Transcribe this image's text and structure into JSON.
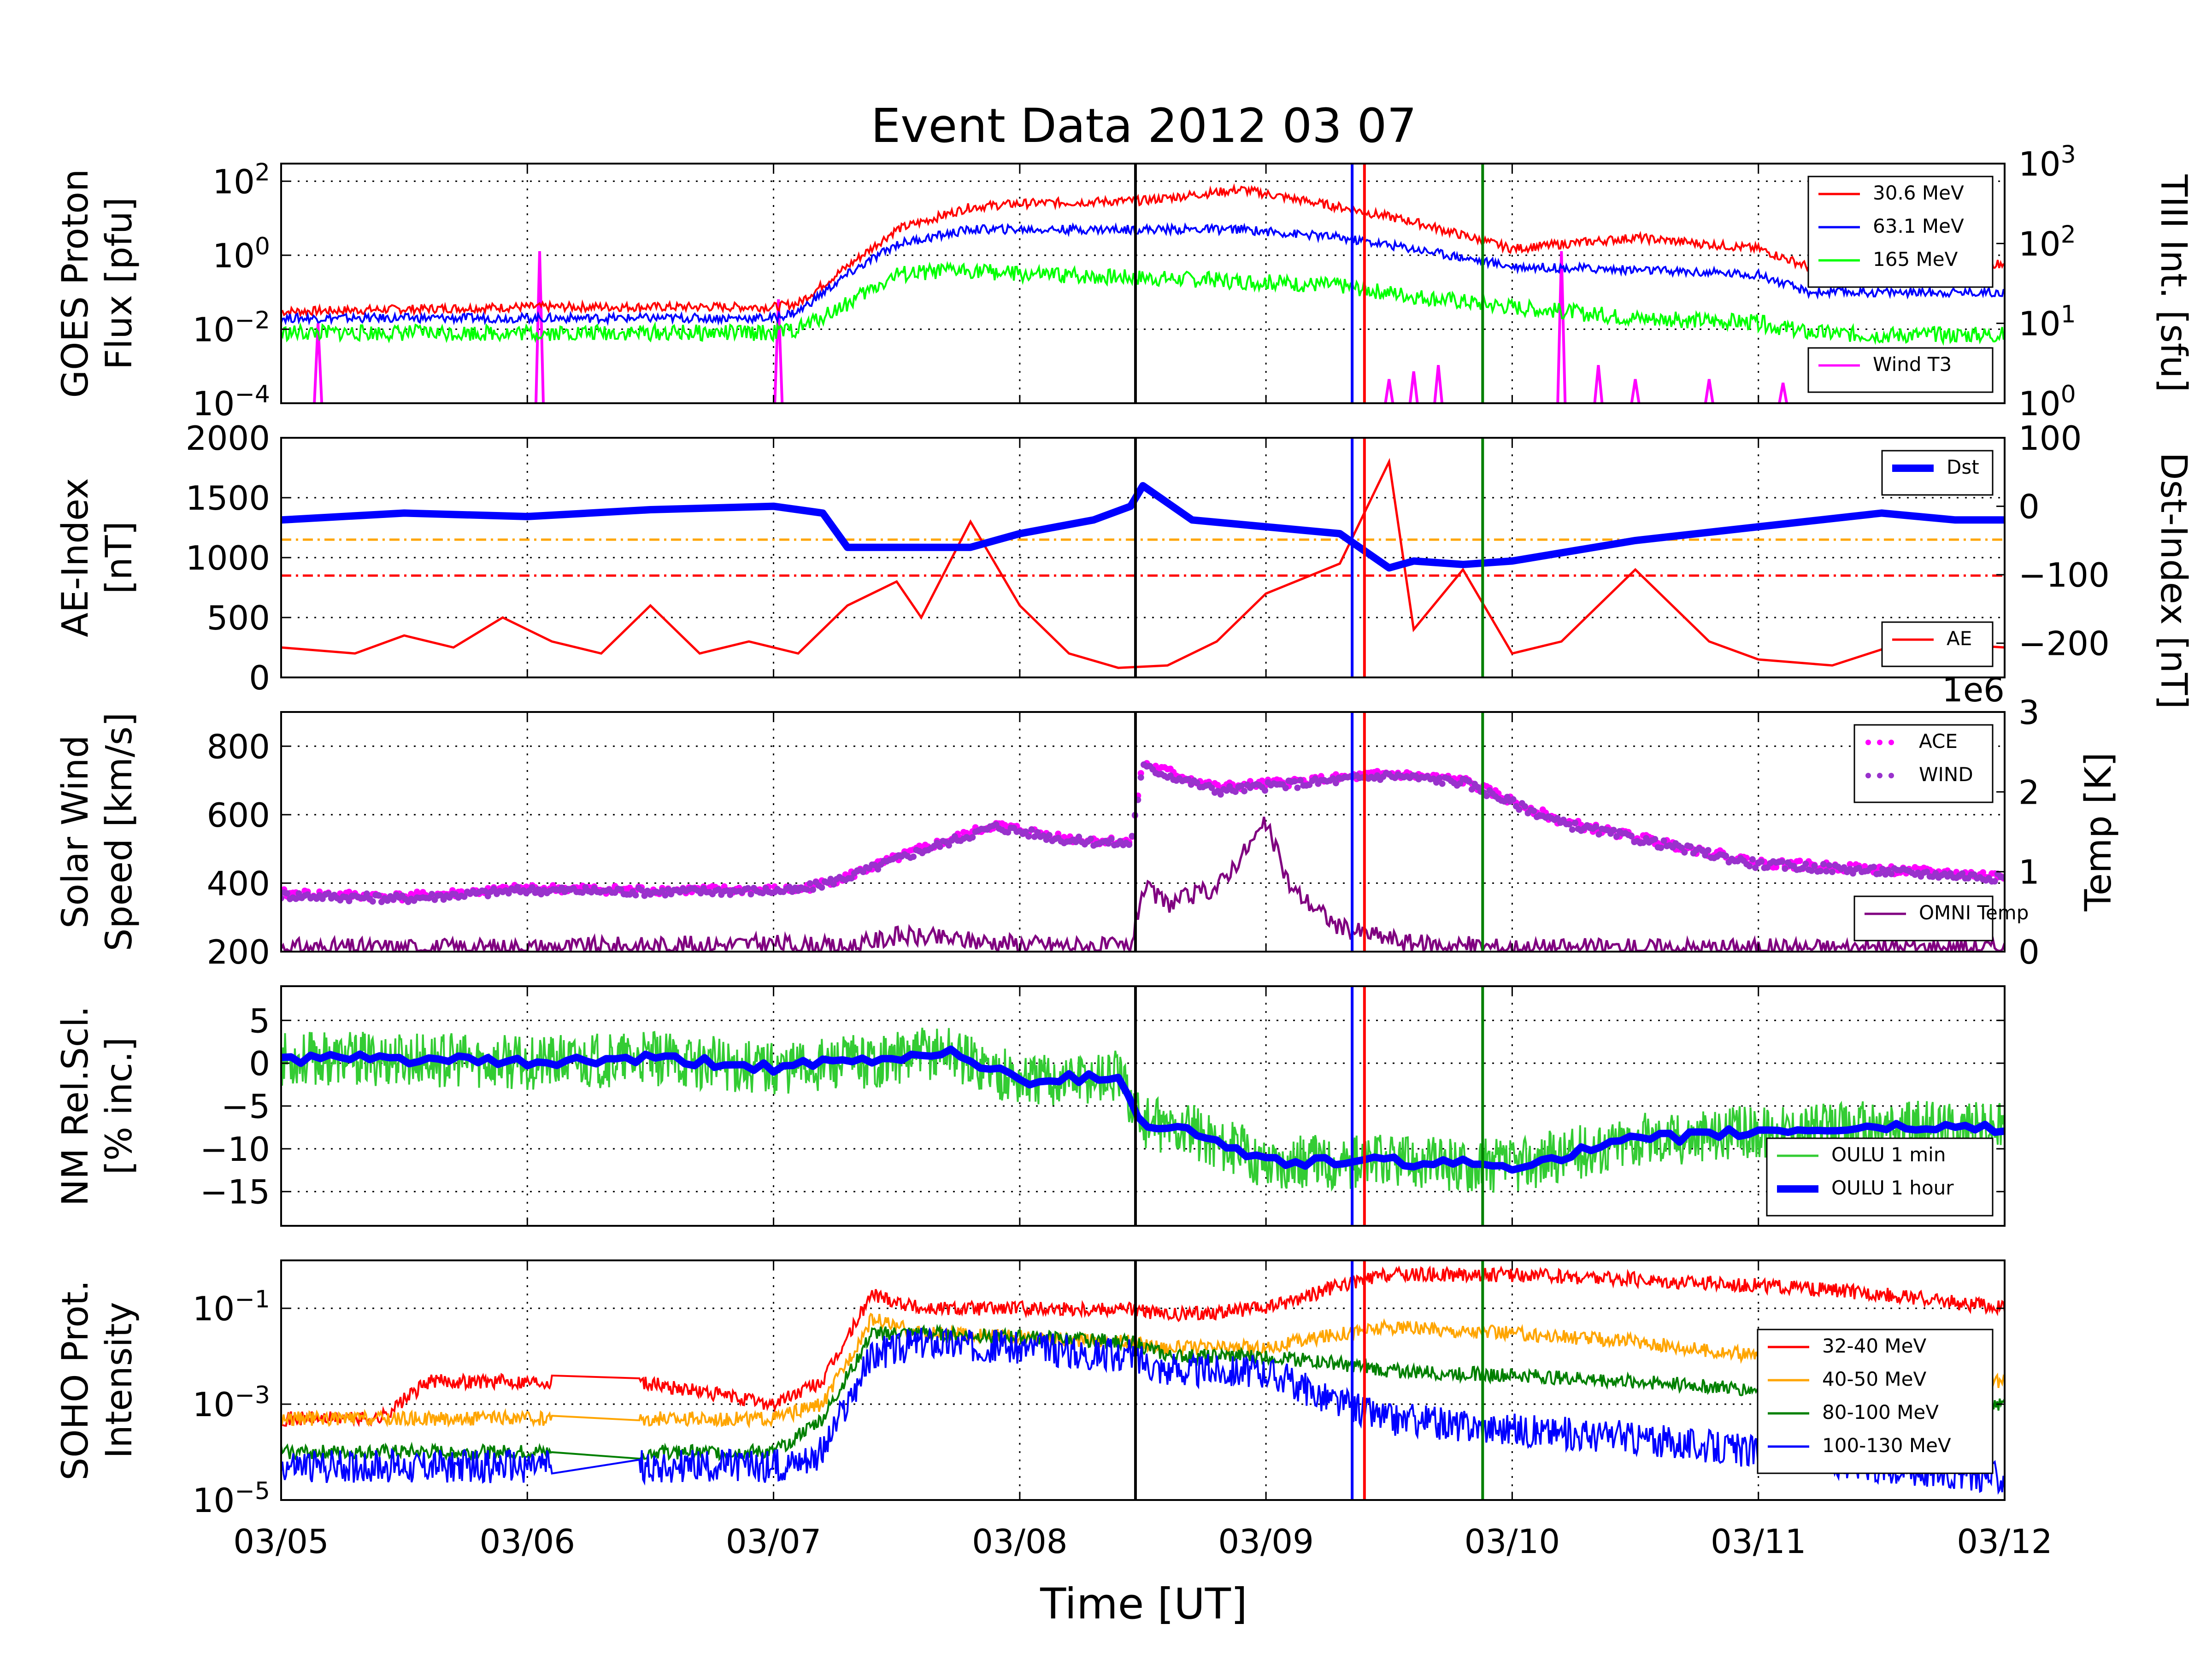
{
  "figure": {
    "title": "Event Data 2012 03 07",
    "xlabel": "Time [UT]",
    "x_ticks": [
      "03/05",
      "03/06",
      "03/07",
      "03/08",
      "03/09",
      "03/10",
      "03/11",
      "03/12"
    ]
  },
  "chart_data": [
    {
      "type": "line",
      "panel": "goes",
      "ylabel_lines": [
        "GOES Proton",
        "Flux [pfu]"
      ],
      "y_scale": "log",
      "ylim": [
        0.0001,
        300
      ],
      "y_ticks": [
        "10^-4",
        "10^-2",
        "10^0",
        "10^2"
      ],
      "y2label": "TIII Int. [sfu]",
      "y2_scale": "log",
      "y2_ticks": [
        "10^0",
        "10^1",
        "10^2",
        "10^3"
      ],
      "x_points": [
        0,
        0.5,
        1,
        1.5,
        2,
        2.1,
        2.3,
        2.5,
        2.8,
        3,
        3.5,
        3.9,
        4.3,
        4.6,
        5.0,
        5.5,
        6,
        6.2,
        6.5,
        7
      ],
      "series": [
        {
          "name": "30.6 MeV",
          "color": "#ff0000",
          "values": [
            0.03,
            0.035,
            0.04,
            0.04,
            0.04,
            0.05,
            0.5,
            5,
            20,
            25,
            30,
            60,
            20,
            8,
            1.5,
            3,
            1.5,
            0.5,
            0.5,
            0.6
          ]
        },
        {
          "name": "63.1 MeV",
          "color": "#0000ff",
          "values": [
            0.02,
            0.02,
            0.02,
            0.02,
            0.02,
            0.03,
            0.3,
            2,
            5,
            5,
            5,
            5,
            3,
            1.5,
            0.5,
            0.4,
            0.3,
            0.1,
            0.1,
            0.1
          ]
        },
        {
          "name": "165 MeV",
          "color": "#00ff00",
          "values": [
            0.008,
            0.008,
            0.008,
            0.008,
            0.008,
            0.01,
            0.05,
            0.3,
            0.4,
            0.3,
            0.25,
            0.2,
            0.15,
            0.08,
            0.04,
            0.02,
            0.015,
            0.008,
            0.007,
            0.007
          ]
        }
      ],
      "y2_series": {
        "name": "Wind T3",
        "color": "#ff00ff",
        "spikes": [
          [
            0.15,
            10
          ],
          [
            1.05,
            80
          ],
          [
            2.02,
            20
          ],
          [
            4.5,
            2
          ],
          [
            4.6,
            2.5
          ],
          [
            4.7,
            3
          ],
          [
            5.2,
            80
          ],
          [
            5.35,
            3
          ],
          [
            5.5,
            2
          ],
          [
            5.8,
            2
          ],
          [
            6.1,
            1.8
          ]
        ]
      }
    },
    {
      "type": "line",
      "panel": "ae",
      "ylabel_lines": [
        "AE-Index",
        "[nT]"
      ],
      "ylim": [
        0,
        2000
      ],
      "y_ticks": [
        "0",
        "500",
        "1000",
        "1500",
        "2000"
      ],
      "y2label": "Dst-Index [nT]",
      "y2lim": [
        -250,
        100
      ],
      "y2_ticks": [
        "−200",
        "−100",
        "0",
        "100"
      ],
      "thresholds": [
        {
          "value": 1150,
          "color": "#ffa500"
        },
        {
          "value": 850,
          "color": "#ff0000"
        }
      ],
      "series": [
        {
          "name": "AE",
          "color": "#ff0000",
          "x": [
            0,
            0.3,
            0.5,
            0.7,
            0.9,
            1.1,
            1.3,
            1.5,
            1.7,
            1.9,
            2.1,
            2.3,
            2.5,
            2.6,
            2.8,
            3.0,
            3.2,
            3.4,
            3.6,
            3.8,
            4.0,
            4.3,
            4.5,
            4.6,
            4.8,
            5.0,
            5.2,
            5.5,
            5.8,
            6.0,
            6.3,
            6.6,
            7.0
          ],
          "values": [
            250,
            200,
            350,
            250,
            500,
            300,
            200,
            600,
            200,
            300,
            200,
            600,
            800,
            500,
            1300,
            600,
            200,
            80,
            100,
            300,
            700,
            950,
            1800,
            400,
            900,
            200,
            300,
            900,
            300,
            150,
            100,
            300,
            250
          ]
        },
        {
          "name": "Dst",
          "color": "#0000ff",
          "x": [
            0,
            0.5,
            1.0,
            1.5,
            2.0,
            2.2,
            2.3,
            2.6,
            2.8,
            3.0,
            3.3,
            3.45,
            3.5,
            3.7,
            4.0,
            4.3,
            4.5,
            4.6,
            4.8,
            5.0,
            5.5,
            6.0,
            6.5,
            6.8,
            7.0
          ],
          "values": [
            -20,
            -10,
            -15,
            -5,
            0,
            -10,
            -60,
            -60,
            -60,
            -40,
            -20,
            0,
            30,
            -20,
            -30,
            -40,
            -90,
            -80,
            -85,
            -80,
            -50,
            -30,
            -10,
            -20,
            -20
          ]
        }
      ]
    },
    {
      "type": "scatter",
      "panel": "solarwind",
      "ylabel_lines": [
        "Solar Wind",
        "Speed [km/s]"
      ],
      "ylim": [
        200,
        900
      ],
      "y_ticks": [
        "200",
        "400",
        "600",
        "800"
      ],
      "y2label": "Temp [K]",
      "y2_offset_text": "1e6",
      "y2lim": [
        0,
        3
      ],
      "y2_ticks": [
        "0",
        "1",
        "2",
        "3"
      ],
      "series": [
        {
          "name": "ACE",
          "color": "#ff00ff",
          "x": [
            0,
            0.5,
            1.0,
            1.5,
            2.0,
            2.1,
            2.3,
            2.6,
            2.9,
            3.2,
            3.45,
            3.5,
            3.8,
            4.2,
            4.5,
            4.8,
            5.2,
            5.6,
            6.0,
            6.5,
            7.0
          ],
          "values": [
            370,
            360,
            385,
            380,
            380,
            380,
            420,
            500,
            570,
            530,
            520,
            750,
            680,
            700,
            720,
            700,
            580,
            520,
            460,
            440,
            420
          ]
        },
        {
          "name": "WIND",
          "color": "#9932cc",
          "x": [
            0,
            0.5,
            1.0,
            1.5,
            2.0,
            2.1,
            2.3,
            2.6,
            2.9,
            3.2,
            3.45,
            3.5,
            3.8,
            4.2,
            4.5,
            4.8,
            5.2,
            5.6,
            6.0,
            6.5,
            7.0
          ],
          "values": [
            365,
            355,
            380,
            375,
            378,
            378,
            418,
            495,
            565,
            525,
            515,
            740,
            670,
            695,
            715,
            695,
            575,
            515,
            455,
            435,
            415
          ]
        },
        {
          "name": "OMNI Temp",
          "color": "#800080",
          "x": [
            0,
            1.0,
            2.0,
            2.3,
            2.5,
            3.0,
            3.45,
            3.5,
            3.6,
            3.8,
            4.0,
            4.1,
            4.3,
            4.6,
            5.0,
            6.0,
            7.0
          ],
          "values": [
            0.05,
            0.05,
            0.1,
            0.05,
            0.2,
            0.1,
            0.05,
            0.8,
            0.6,
            0.8,
            1.6,
            0.8,
            0.3,
            0.1,
            0.05,
            0.05,
            0.05
          ]
        }
      ]
    },
    {
      "type": "line",
      "panel": "nm",
      "ylabel_lines": [
        "NM Rel.Scl.",
        "[% inc.]"
      ],
      "ylim": [
        -19,
        9
      ],
      "y_ticks": [
        "−15",
        "−10",
        "−5",
        "0",
        "5"
      ],
      "series": [
        {
          "name": "OULU 1 min",
          "color": "#33cc33",
          "x": [
            0,
            0.5,
            1.0,
            1.5,
            2.0,
            2.5,
            2.7,
            3.0,
            3.4,
            3.5,
            3.7,
            4.0,
            4.5,
            5.0,
            5.5,
            6.0,
            6.5,
            7.0
          ],
          "values": [
            0.5,
            0.5,
            0,
            0.5,
            -0.5,
            0.5,
            1.5,
            -2,
            -1.5,
            -7,
            -8,
            -11.5,
            -11.5,
            -12,
            -9,
            -8,
            -7.5,
            -7.5
          ]
        },
        {
          "name": "OULU 1 hour",
          "color": "#0000ff",
          "x": [
            0,
            0.5,
            1.0,
            1.5,
            2.0,
            2.5,
            2.7,
            3.0,
            3.4,
            3.5,
            3.7,
            4.0,
            4.5,
            5.0,
            5.5,
            6.0,
            6.5,
            7.0
          ],
          "values": [
            0.5,
            0.5,
            0,
            0.5,
            -0.5,
            0.5,
            1.5,
            -2,
            -1.5,
            -7,
            -8,
            -11.5,
            -11.5,
            -12,
            -9,
            -8,
            -7.5,
            -7.5
          ]
        }
      ]
    },
    {
      "type": "line",
      "panel": "soho",
      "ylabel_lines": [
        "SOHO Prot.",
        "Intensity"
      ],
      "y_scale": "log",
      "ylim": [
        1e-05,
        1
      ],
      "y_ticks": [
        "10^-5",
        "10^-3",
        "10^-1"
      ],
      "gap": [
        1.1,
        1.45
      ],
      "x": [
        0,
        0.4,
        0.6,
        1.1,
        1.45,
        2.0,
        2.2,
        2.4,
        2.6,
        3.0,
        3.45,
        3.6,
        4.0,
        4.3,
        4.5,
        5.0,
        5.5,
        6.0,
        6.5,
        7.0
      ],
      "series": [
        {
          "name": "32-40 MeV",
          "color": "#ff0000",
          "values": [
            0.0005,
            0.0005,
            0.003,
            0.003,
            0.003,
            0.001,
            0.003,
            0.2,
            0.1,
            0.1,
            0.1,
            0.07,
            0.1,
            0.3,
            0.5,
            0.5,
            0.4,
            0.3,
            0.2,
            0.1
          ]
        },
        {
          "name": "40-50 MeV",
          "color": "#ffa500",
          "values": [
            0.0005,
            0.0005,
            0.0005,
            0.0005,
            0.0005,
            0.0005,
            0.001,
            0.06,
            0.03,
            0.025,
            0.02,
            0.015,
            0.015,
            0.03,
            0.04,
            0.03,
            0.02,
            0.01,
            0.005,
            0.003
          ]
        },
        {
          "name": "80-100 MeV",
          "color": "#008000",
          "values": [
            0.0001,
            0.0001,
            0.0001,
            0.0001,
            0.0001,
            0.0001,
            0.0005,
            0.03,
            0.03,
            0.025,
            0.02,
            0.01,
            0.01,
            0.007,
            0.005,
            0.004,
            0.003,
            0.002,
            0.0015,
            0.001
          ]
        },
        {
          "name": "100-130 MeV",
          "color": "#0000ff",
          "values": [
            5e-05,
            5e-05,
            5e-05,
            5e-05,
            5e-05,
            5e-05,
            0.0001,
            0.01,
            0.02,
            0.015,
            0.01,
            0.005,
            0.005,
            0.001,
            0.0005,
            0.0003,
            0.0002,
            0.0001,
            5e-05,
            3e-05
          ]
        }
      ]
    }
  ],
  "event_markers": [
    {
      "x": 3.47,
      "color": "#000000"
    },
    {
      "x": 4.35,
      "color": "#0000ff"
    },
    {
      "x": 4.4,
      "color": "#ff0000"
    },
    {
      "x": 4.88,
      "color": "#008000"
    }
  ]
}
